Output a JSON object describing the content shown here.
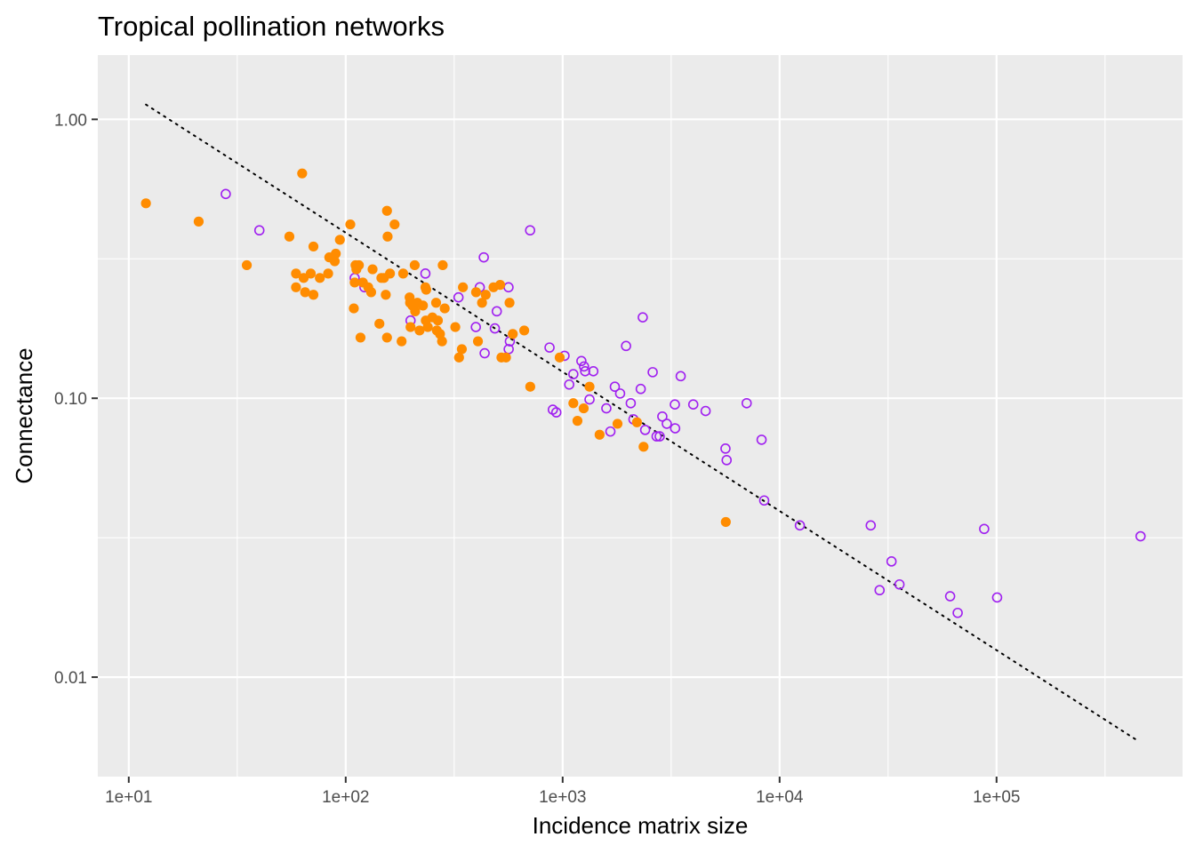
{
  "chart_data": {
    "type": "scatter",
    "title": "Tropical pollination networks",
    "xlabel": "Incidence matrix size",
    "ylabel": "Connectance",
    "x_scale": "log10",
    "y_scale": "log10",
    "xlim": [
      7.2,
      720000
    ],
    "ylim": [
      0.0044,
      1.7
    ],
    "x_ticks": [
      {
        "value": 10,
        "label": "1e+01"
      },
      {
        "value": 100,
        "label": "1e+02"
      },
      {
        "value": 1000,
        "label": "1e+03"
      },
      {
        "value": 10000,
        "label": "1e+04"
      },
      {
        "value": 100000,
        "label": "1e+05"
      }
    ],
    "y_ticks": [
      {
        "value": 0.01,
        "label": "0.01"
      },
      {
        "value": 0.1,
        "label": "0.10"
      },
      {
        "value": 1.0,
        "label": "1.00"
      }
    ],
    "grid": true,
    "background": "#ebebeb",
    "series": [
      {
        "marker": "filled-circle",
        "color": "#ff8c00",
        "points": [
          [
            12,
            0.5
          ],
          [
            21,
            0.43
          ],
          [
            35,
            0.3
          ],
          [
            55,
            0.38
          ],
          [
            59,
            0.28
          ],
          [
            59,
            0.25
          ],
          [
            63,
            0.64
          ],
          [
            64,
            0.27
          ],
          [
            65,
            0.24
          ],
          [
            69,
            0.28
          ],
          [
            71,
            0.235
          ],
          [
            71,
            0.35
          ],
          [
            76,
            0.27
          ],
          [
            83,
            0.28
          ],
          [
            84,
            0.32
          ],
          [
            89,
            0.31
          ],
          [
            90,
            0.33
          ],
          [
            94,
            0.37
          ],
          [
            105,
            0.42
          ],
          [
            109,
            0.21
          ],
          [
            110,
            0.26
          ],
          [
            111,
            0.3
          ],
          [
            112,
            0.29
          ],
          [
            115,
            0.3
          ],
          [
            117,
            0.165
          ],
          [
            120,
            0.26
          ],
          [
            127,
            0.25
          ],
          [
            131,
            0.24
          ],
          [
            133,
            0.29
          ],
          [
            143,
            0.185
          ],
          [
            146,
            0.27
          ],
          [
            150,
            0.27
          ],
          [
            153,
            0.235
          ],
          [
            155,
            0.47
          ],
          [
            156,
            0.38
          ],
          [
            155,
            0.165
          ],
          [
            160,
            0.28
          ],
          [
            168,
            0.42
          ],
          [
            181,
            0.16
          ],
          [
            184,
            0.28
          ],
          [
            197,
            0.23
          ],
          [
            198,
            0.22
          ],
          [
            199,
            0.18
          ],
          [
            203,
            0.215
          ],
          [
            208,
            0.3
          ],
          [
            209,
            0.205
          ],
          [
            214,
            0.22
          ],
          [
            219,
            0.175
          ],
          [
            227,
            0.215
          ],
          [
            233,
            0.25
          ],
          [
            234,
            0.19
          ],
          [
            235,
            0.245
          ],
          [
            239,
            0.18
          ],
          [
            251,
            0.195
          ],
          [
            261,
            0.22
          ],
          [
            263,
            0.175
          ],
          [
            266,
            0.19
          ],
          [
            272,
            0.17
          ],
          [
            278,
            0.16
          ],
          [
            280,
            0.3
          ],
          [
            286,
            0.21
          ],
          [
            320,
            0.18
          ],
          [
            333,
            0.14
          ],
          [
            343,
            0.15
          ],
          [
            347,
            0.25
          ],
          [
            399,
            0.24
          ],
          [
            407,
            0.16
          ],
          [
            425,
            0.22
          ],
          [
            442,
            0.235
          ],
          [
            480,
            0.25
          ],
          [
            515,
            0.255
          ],
          [
            522,
            0.14
          ],
          [
            548,
            0.14
          ],
          [
            569,
            0.22
          ],
          [
            589,
            0.17
          ],
          [
            665,
            0.175
          ],
          [
            709,
            0.11
          ],
          [
            969,
            0.14
          ],
          [
            1120,
            0.096
          ],
          [
            1170,
            0.083
          ],
          [
            1250,
            0.092
          ],
          [
            1330,
            0.11
          ],
          [
            1480,
            0.074
          ],
          [
            1790,
            0.081
          ],
          [
            2200,
            0.082
          ],
          [
            2360,
            0.067
          ],
          [
            5650,
            0.036
          ]
        ]
      },
      {
        "marker": "open-circle",
        "color": "#a020f0",
        "points": [
          [
            28,
            0.54
          ],
          [
            40,
            0.4
          ],
          [
            110,
            0.27
          ],
          [
            122,
            0.25
          ],
          [
            233,
            0.28
          ],
          [
            199,
            0.19
          ],
          [
            331,
            0.23
          ],
          [
            398,
            0.18
          ],
          [
            415,
            0.25
          ],
          [
            433,
            0.32
          ],
          [
            437,
            0.145
          ],
          [
            487,
            0.178
          ],
          [
            497,
            0.205
          ],
          [
            563,
            0.25
          ],
          [
            564,
            0.15
          ],
          [
            571,
            0.16
          ],
          [
            708,
            0.4
          ],
          [
            870,
            0.152
          ],
          [
            901,
            0.091
          ],
          [
            935,
            0.089
          ],
          [
            1020,
            0.142
          ],
          [
            1072,
            0.112
          ],
          [
            1120,
            0.122
          ],
          [
            1220,
            0.136
          ],
          [
            1255,
            0.13
          ],
          [
            1270,
            0.125
          ],
          [
            1330,
            0.099
          ],
          [
            1385,
            0.125
          ],
          [
            1590,
            0.092
          ],
          [
            1660,
            0.076
          ],
          [
            1740,
            0.11
          ],
          [
            1840,
            0.104
          ],
          [
            1960,
            0.154
          ],
          [
            2060,
            0.096
          ],
          [
            2120,
            0.084
          ],
          [
            2290,
            0.108
          ],
          [
            2340,
            0.195
          ],
          [
            2400,
            0.077
          ],
          [
            2600,
            0.124
          ],
          [
            2710,
            0.073
          ],
          [
            2800,
            0.073
          ],
          [
            2880,
            0.086
          ],
          [
            3020,
            0.081
          ],
          [
            3290,
            0.095
          ],
          [
            3300,
            0.078
          ],
          [
            3500,
            0.12
          ],
          [
            4000,
            0.095
          ],
          [
            4560,
            0.09
          ],
          [
            5630,
            0.066
          ],
          [
            5700,
            0.06
          ],
          [
            7050,
            0.096
          ],
          [
            8260,
            0.071
          ],
          [
            8490,
            0.043
          ],
          [
            12400,
            0.035
          ],
          [
            26300,
            0.035
          ],
          [
            28900,
            0.0205
          ],
          [
            32800,
            0.026
          ],
          [
            35700,
            0.0215
          ],
          [
            61100,
            0.0195
          ],
          [
            66200,
            0.017
          ],
          [
            87700,
            0.034
          ],
          [
            100600,
            0.0193
          ],
          [
            461000,
            0.032
          ]
        ]
      }
    ],
    "trend_line": {
      "style": "dotted",
      "color": "#000000",
      "x": [
        12,
        450000
      ],
      "y": [
        1.13,
        0.0059
      ]
    }
  }
}
